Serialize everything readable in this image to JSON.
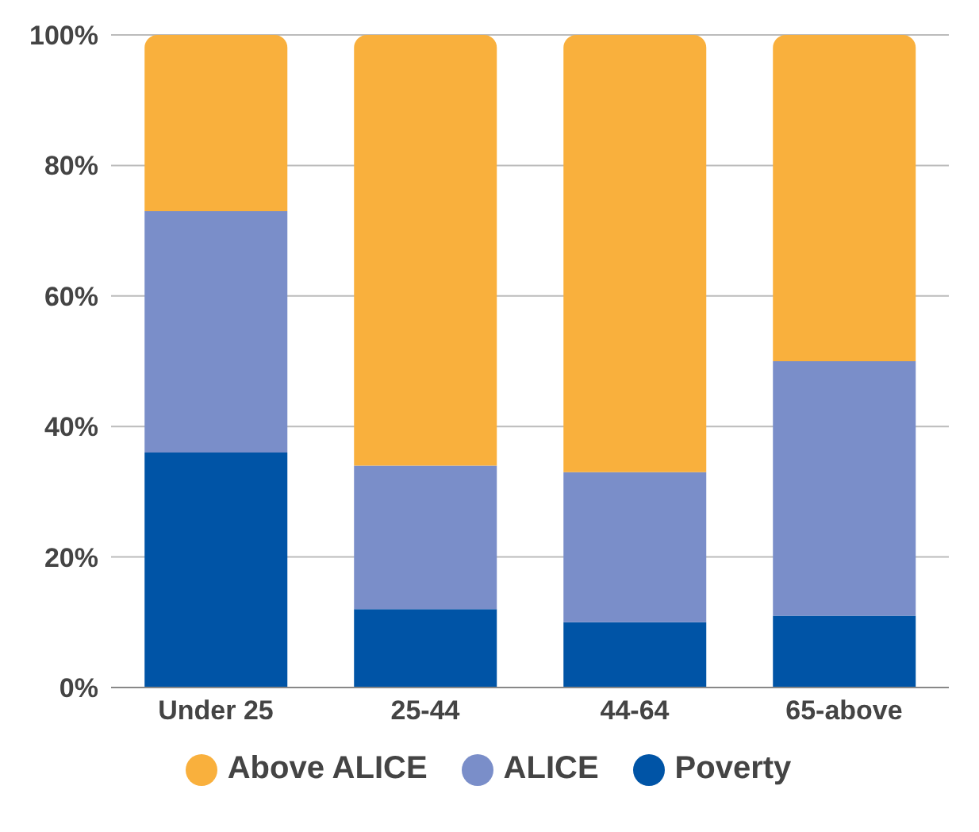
{
  "chart_data": {
    "type": "bar",
    "stacked": true,
    "categories": [
      "Under 25",
      "25-44",
      "44-64",
      "65-above"
    ],
    "series": [
      {
        "name": "Poverty",
        "color": "#0054a6",
        "values": [
          36,
          12,
          10,
          11
        ]
      },
      {
        "name": "ALICE",
        "color": "#7a8ec9",
        "values": [
          37,
          22,
          23,
          39
        ]
      },
      {
        "name": "Above ALICE",
        "color": "#f9b03d",
        "values": [
          27,
          66,
          67,
          50
        ]
      }
    ],
    "ylim": [
      0,
      100
    ],
    "yticks": [
      {
        "value": 0,
        "label": "0%"
      },
      {
        "value": 20,
        "label": "20%"
      },
      {
        "value": 40,
        "label": "40%"
      },
      {
        "value": 60,
        "label": "60%"
      },
      {
        "value": 80,
        "label": "80%"
      },
      {
        "value": 100,
        "label": "100%"
      }
    ],
    "grid": "y",
    "legend": "bottom"
  }
}
